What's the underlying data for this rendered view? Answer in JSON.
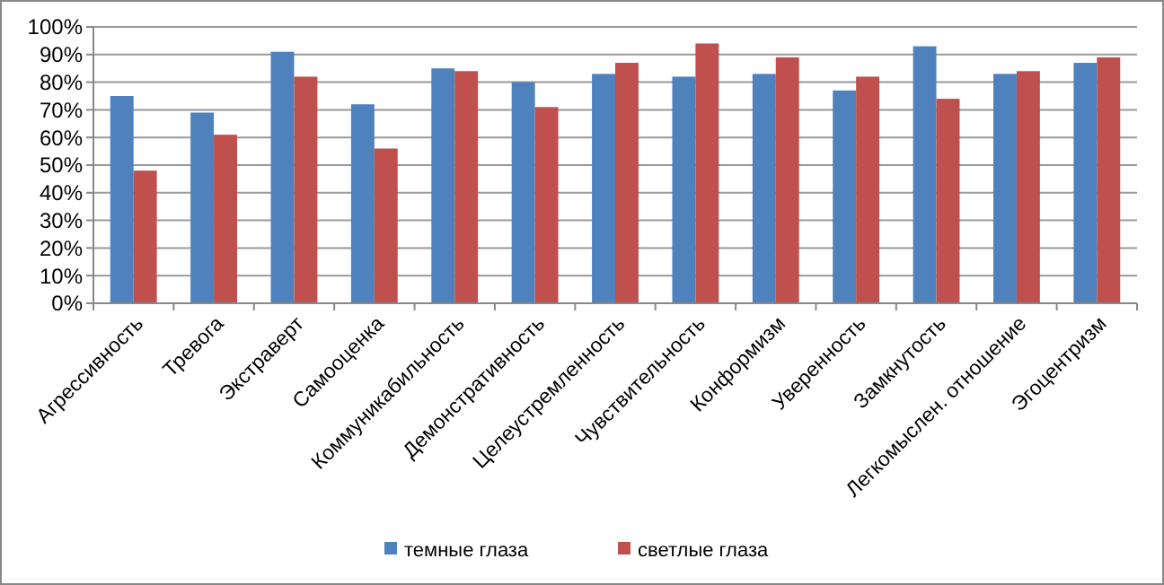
{
  "chart_data": {
    "type": "bar",
    "categories": [
      "Агрессивность",
      "Тревога",
      "Экстраверт",
      "Самооценка",
      "Коммуникабильность",
      "Демонстративность",
      "Целеустремленность",
      "Чувствительность",
      "Конформизм",
      "Уверенность",
      "Замкнутость",
      "Легкомыслен. отношение",
      "Эгоцентризм"
    ],
    "series": [
      {
        "name": "темные глаза",
        "color": "#4f81bd",
        "values": [
          75,
          69,
          91,
          72,
          85,
          80,
          83,
          82,
          83,
          77,
          93,
          83,
          87
        ]
      },
      {
        "name": "светлые глаза",
        "color": "#c0504d",
        "values": [
          48,
          61,
          82,
          56,
          84,
          71,
          87,
          94,
          89,
          82,
          74,
          84,
          89
        ]
      }
    ],
    "ylim": [
      0,
      100
    ],
    "yticks": [
      {
        "value": 0,
        "label": "0%"
      },
      {
        "value": 10,
        "label": "10%"
      },
      {
        "value": 20,
        "label": "20%"
      },
      {
        "value": 30,
        "label": "30%"
      },
      {
        "value": 40,
        "label": "40%"
      },
      {
        "value": 50,
        "label": "50%"
      },
      {
        "value": 60,
        "label": "60%"
      },
      {
        "value": 70,
        "label": "70%"
      },
      {
        "value": 80,
        "label": "80%"
      },
      {
        "value": 90,
        "label": "90%"
      },
      {
        "value": 100,
        "label": "100%"
      }
    ],
    "grid": "y",
    "legend": "bottom"
  }
}
